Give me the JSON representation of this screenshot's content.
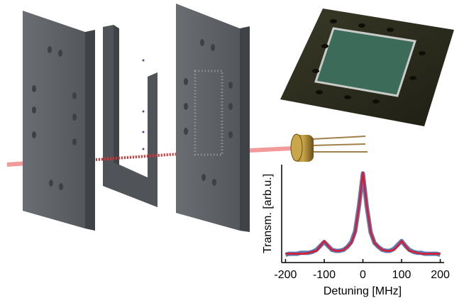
{
  "chart_data": {
    "type": "line",
    "xlabel": "Detuning [MHz]",
    "ylabel": "Transm. [arb.u.]",
    "x": [
      -200,
      -190,
      -180,
      -170,
      -160,
      -150,
      -140,
      -130,
      -120,
      -110,
      -100,
      -90,
      -80,
      -70,
      -60,
      -50,
      -40,
      -30,
      -20,
      -10,
      0,
      10,
      20,
      30,
      40,
      50,
      60,
      70,
      80,
      90,
      100,
      110,
      120,
      130,
      140,
      150,
      160,
      170,
      180,
      190,
      200
    ],
    "series": [
      {
        "color": "#5b7bb5",
        "values": [
          0.08,
          0.09,
          0.09,
          0.09,
          0.1,
          0.1,
          0.1,
          0.11,
          0.13,
          0.17,
          0.21,
          0.17,
          0.13,
          0.12,
          0.12,
          0.13,
          0.16,
          0.21,
          0.32,
          0.58,
          0.91,
          0.57,
          0.31,
          0.2,
          0.16,
          0.13,
          0.12,
          0.12,
          0.14,
          0.18,
          0.22,
          0.17,
          0.13,
          0.11,
          0.1,
          0.1,
          0.09,
          0.09,
          0.09,
          0.09,
          0.08
        ]
      },
      {
        "color": "#e0182d",
        "values": [
          0.09,
          0.09,
          0.09,
          0.09,
          0.09,
          0.09,
          0.1,
          0.11,
          0.12,
          0.17,
          0.22,
          0.17,
          0.13,
          0.12,
          0.12,
          0.13,
          0.16,
          0.2,
          0.31,
          0.58,
          0.92,
          0.58,
          0.31,
          0.2,
          0.16,
          0.13,
          0.12,
          0.12,
          0.13,
          0.17,
          0.22,
          0.17,
          0.12,
          0.11,
          0.1,
          0.09,
          0.09,
          0.09,
          0.09,
          0.09,
          0.09
        ]
      }
    ],
    "xlim": [
      -210,
      210
    ],
    "ylim": [
      0,
      1
    ],
    "xticks": [
      -200,
      -100,
      0,
      100,
      200
    ]
  }
}
